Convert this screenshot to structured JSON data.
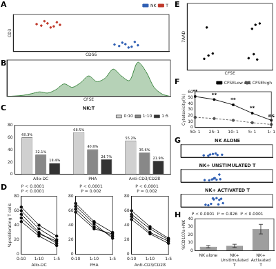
{
  "chart_data": [
    {
      "panel": "A",
      "type": "scatter",
      "x_label": "CD56",
      "y_label": "CD3",
      "xlim": [
        0,
        1000
      ],
      "ylim": [
        0,
        1000
      ],
      "tick_labels": false,
      "legend": "top-right",
      "series": [
        {
          "name": "NK",
          "color": "#2f5fb3",
          "marker": "circle",
          "x": [
            680,
            720,
            760,
            700,
            800,
            740,
            650,
            780
          ],
          "values": [
            150,
            200,
            130,
            240,
            170,
            110,
            190,
            260
          ]
        },
        {
          "name": "T",
          "color": "#c0392b",
          "marker": "circle",
          "x": [
            180,
            220,
            260,
            200,
            300,
            240,
            150,
            280
          ],
          "values": [
            700,
            760,
            680,
            820,
            720,
            650,
            740,
            790
          ]
        }
      ]
    },
    {
      "panel": "B",
      "type": "line",
      "x_label": "CFSE",
      "xlim": [
        0,
        1000
      ],
      "ylim": [
        0,
        160
      ],
      "tick_labels": false,
      "color": "#2e7d32",
      "x": [
        0,
        50,
        100,
        150,
        200,
        250,
        300,
        350,
        400,
        450,
        500,
        550,
        600,
        650,
        700,
        750,
        800,
        850,
        900,
        950,
        1000
      ],
      "values": [
        0,
        2,
        5,
        12,
        20,
        15,
        30,
        55,
        40,
        60,
        90,
        65,
        80,
        120,
        90,
        70,
        150,
        110,
        40,
        10,
        0
      ]
    },
    {
      "panel": "C",
      "type": "bar",
      "title": "NK:T",
      "categories": [
        "Allo-DC",
        "PHA",
        "Anti-CD3/CD28"
      ],
      "ylim": [
        0,
        80
      ],
      "yticks": [
        0,
        20,
        40,
        60,
        80
      ],
      "data_labels": true,
      "legend": "top-right",
      "series": [
        {
          "name": "0:10",
          "color": "#d0d0d0",
          "values": [
            60.3,
            68.5,
            55.2
          ],
          "value_labels": [
            "60.3%",
            "68.5%",
            "55.2%"
          ]
        },
        {
          "name": "1:10",
          "color": "#888888",
          "values": [
            32.1,
            40.8,
            35.6
          ],
          "value_labels": [
            "32.1%",
            "40.8%",
            "35.6%"
          ]
        },
        {
          "name": "1:5",
          "color": "#333333",
          "values": [
            18.4,
            24.7,
            21.9
          ],
          "value_labels": [
            "18.4%",
            "24.7%",
            "21.9%"
          ]
        }
      ]
    },
    {
      "panel": "D",
      "type": "line",
      "x_label": "Allo-DC",
      "y_label": "%proliferating T cells",
      "categories": [
        "0:10",
        "1:10",
        "1:5"
      ],
      "ylim": [
        0,
        80
      ],
      "yticks": [
        0,
        20,
        40,
        60,
        80
      ],
      "annotations": [
        "P < 0.0001",
        "P < 0.0001"
      ],
      "series": [
        {
          "color": "#000000",
          "marker": "circle",
          "values": [
            60,
            35,
            20
          ]
        },
        {
          "color": "#000000",
          "marker": "circle",
          "values": [
            55,
            30,
            15
          ]
        },
        {
          "color": "#000000",
          "marker": "circle",
          "values": [
            50,
            28,
            18
          ]
        },
        {
          "color": "#000000",
          "marker": "circle",
          "values": [
            65,
            40,
            25
          ]
        },
        {
          "color": "#000000",
          "marker": "circle",
          "values": [
            45,
            25,
            12
          ]
        }
      ]
    },
    {
      "type": "line",
      "x_label": "PHA",
      "categories": [
        "0:10",
        "1:10",
        "1:5"
      ],
      "ylim": [
        0,
        80
      ],
      "yticks": [
        0,
        20,
        40,
        60,
        80
      ],
      "annotations": [
        "P < 0.0001",
        "P = 0.002"
      ],
      "series": [
        {
          "color": "#000000",
          "marker": "circle",
          "values": [
            70,
            45,
            30
          ]
        },
        {
          "color": "#000000",
          "marker": "circle",
          "values": [
            62,
            38,
            25
          ]
        },
        {
          "color": "#000000",
          "marker": "circle",
          "values": [
            58,
            35,
            28
          ]
        },
        {
          "color": "#000000",
          "marker": "circle",
          "values": [
            66,
            42,
            22
          ]
        }
      ]
    },
    {
      "type": "line",
      "x_label": "Anti-CD3/CD28",
      "categories": [
        "0:10",
        "1:10",
        "1:5"
      ],
      "ylim": [
        0,
        80
      ],
      "yticks": [
        0,
        20,
        40,
        60,
        80
      ],
      "annotations": [
        "P < 0.0001",
        "P = 0.002"
      ],
      "series": [
        {
          "color": "#000000",
          "marker": "circle",
          "values": [
            60,
            38,
            22
          ]
        },
        {
          "color": "#000000",
          "marker": "circle",
          "values": [
            52,
            30,
            18
          ]
        },
        {
          "color": "#000000",
          "marker": "circle",
          "values": [
            48,
            28,
            15
          ]
        },
        {
          "color": "#000000",
          "marker": "circle",
          "values": [
            55,
            35,
            20
          ]
        }
      ]
    },
    {
      "panel": "E",
      "type": "scatter",
      "x_label": "CFSE",
      "y_label": "7AAD",
      "xlim": [
        0,
        1000
      ],
      "ylim": [
        0,
        1000
      ],
      "tick_labels": false,
      "series": [
        {
          "color": "#000000",
          "marker": "circle",
          "x": [
            720,
            780,
            820,
            760,
            800,
            250,
            200,
            300,
            230,
            850
          ],
          "values": [
            180,
            240,
            160,
            620,
            680,
            220,
            170,
            250,
            640,
            700
          ]
        }
      ]
    },
    {
      "panel": "F",
      "type": "line",
      "categories": [
        "50: 1",
        "25: 1",
        "10: 1",
        "5: 1",
        "1: 1"
      ],
      "y_label": "Cytotoxicity(%)",
      "ylim": [
        0,
        60
      ],
      "yticks": [
        0,
        10,
        20,
        30,
        40,
        50,
        60
      ],
      "legend": "top-right",
      "series": [
        {
          "name": "CFSELow",
          "color": "#000000",
          "marker": "square",
          "line_style": "solid",
          "values": [
            52,
            47,
            38,
            24,
            12
          ]
        },
        {
          "name": "CFSEhigh",
          "color": "#555555",
          "marker": "circle",
          "line_style": "dashed",
          "values": [
            17,
            15,
            12,
            8,
            5
          ]
        }
      ],
      "annotations": [
        {
          "text": "**",
          "x": "50: 1"
        },
        {
          "text": "**",
          "x": "25: 1"
        },
        {
          "text": "**",
          "x": "10: 1"
        },
        {
          "text": "**",
          "x": "5: 1"
        },
        {
          "text": "ns",
          "x": "1: 1"
        }
      ]
    },
    {
      "panel": "G",
      "type": "scatter",
      "title": "NK ALONE",
      "xlim": [
        0,
        1000
      ],
      "ylim": [
        0,
        1000
      ],
      "tick_labels": false,
      "series": [
        {
          "color": "#2f5fb3",
          "marker": "circle",
          "x": [
            250,
            320,
            400,
            350,
            450,
            300,
            380
          ],
          "values": [
            150,
            220,
            180,
            260,
            200,
            120,
            300
          ]
        }
      ]
    },
    {
      "type": "scatter",
      "title": "NK+ UNSTIMULATED T",
      "xlim": [
        0,
        1000
      ],
      "ylim": [
        0,
        1000
      ],
      "tick_labels": false,
      "series": [
        {
          "color": "#2f5fb3",
          "marker": "circle",
          "x": [
            260,
            340,
            390,
            360,
            430,
            310,
            370,
            420
          ],
          "values": [
            160,
            210,
            190,
            280,
            230,
            140,
            320,
            600
          ]
        }
      ]
    },
    {
      "type": "scatter",
      "title": "NK+ ACTIVATED T",
      "xlim": [
        0,
        1000
      ],
      "ylim": [
        0,
        1000
      ],
      "tick_labels": false,
      "series": [
        {
          "color": "#2f5fb3",
          "marker": "circle",
          "x": [
            270,
            330,
            410,
            360,
            440,
            300,
            390,
            420,
            350,
            460
          ],
          "values": [
            170,
            240,
            200,
            600,
            650,
            130,
            700,
            560,
            680,
            300
          ]
        }
      ]
    },
    {
      "panel": "H",
      "type": "bar",
      "categories": [
        "NK alone",
        "NK+Unstimulated T",
        "NK+Activated T"
      ],
      "values": [
        5,
        6,
        27
      ],
      "errors": [
        1.5,
        2,
        6
      ],
      "color": "#9e9e9e",
      "y_label": "%CD107a+NK",
      "ylim": [
        0,
        40
      ],
      "yticks": [
        0,
        10,
        20,
        30,
        40
      ],
      "annotations": [
        "P < 0.0001",
        "P = 0.826",
        "P < 0.0001"
      ]
    }
  ]
}
